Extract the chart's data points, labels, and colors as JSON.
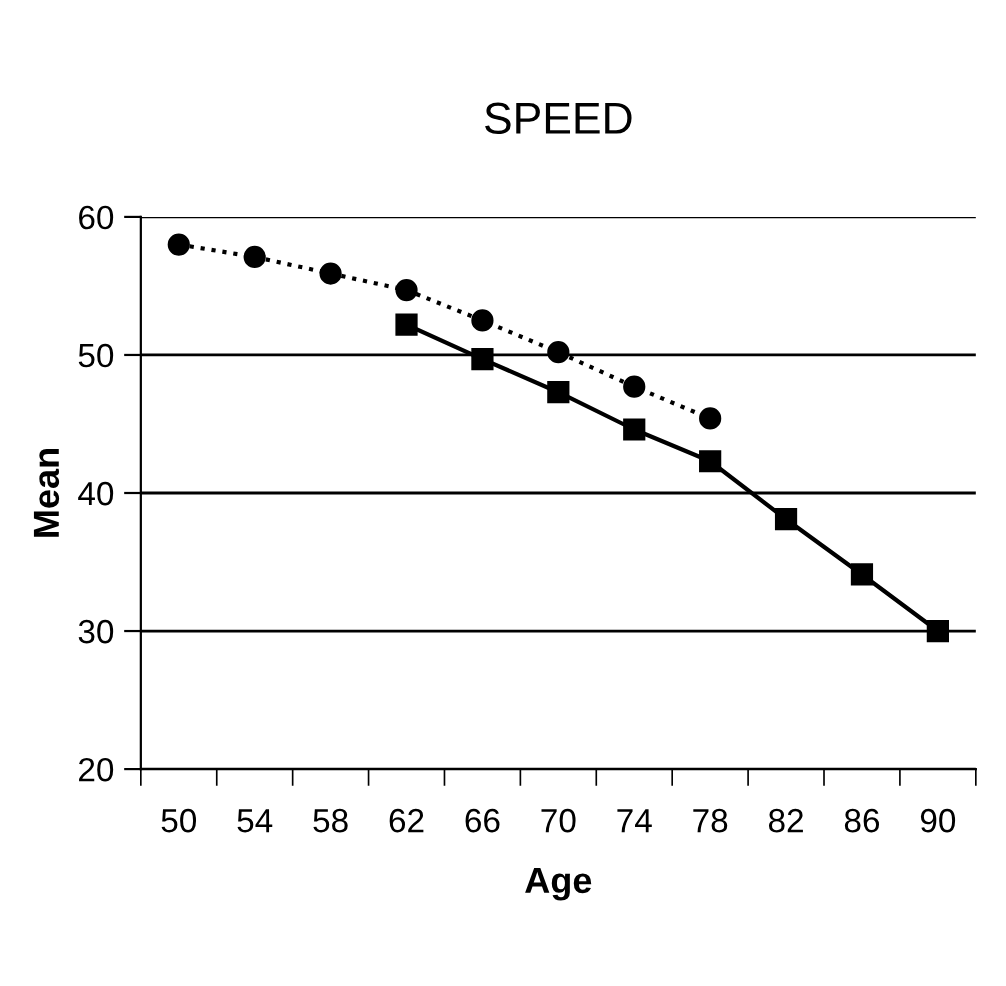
{
  "chart_data": {
    "type": "line",
    "title": "SPEED",
    "xlabel": "Age",
    "ylabel": "Mean",
    "categories": [
      "50",
      "54",
      "58",
      "62",
      "66",
      "70",
      "74",
      "78",
      "82",
      "86",
      "90"
    ],
    "series": [
      {
        "color": "#000000",
        "marker": "circle",
        "line_style": "dotted",
        "values": [
          58.0,
          57.1,
          55.9,
          54.7,
          52.5,
          50.2,
          47.7,
          45.4,
          null,
          null,
          null
        ]
      },
      {
        "color": "#000000",
        "marker": "square",
        "line_style": "solid",
        "values": [
          null,
          null,
          null,
          52.2,
          49.7,
          47.3,
          44.6,
          42.3,
          38.1,
          34.1,
          30.0
        ]
      }
    ],
    "ylim": [
      20,
      60
    ],
    "yticks": [
      20,
      30,
      40,
      50,
      60
    ],
    "grid": "y",
    "legend": false
  }
}
